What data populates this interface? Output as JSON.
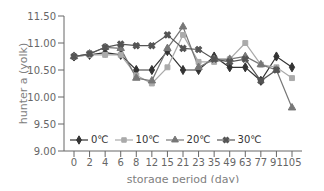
{
  "chart_data": {
    "type": "line",
    "xlabel": "storage period (day)",
    "ylabel": "hunter a (yolk)",
    "categories": [
      "0",
      "2",
      "4",
      "6",
      "8",
      "12",
      "15",
      "21",
      "23",
      "35",
      "49",
      "63",
      "77",
      "91",
      "105"
    ],
    "series": [
      {
        "name": "0℃",
        "color": "#333333",
        "marker": "diamond",
        "values": [
          10.75,
          10.78,
          10.82,
          10.78,
          10.5,
          10.5,
          10.85,
          10.5,
          10.5,
          10.75,
          10.55,
          10.55,
          10.3,
          10.75,
          10.55
        ]
      },
      {
        "name": "10℃",
        "color": "#aaaaaa",
        "marker": "square",
        "values": [
          10.75,
          10.78,
          10.78,
          10.78,
          10.4,
          10.25,
          10.55,
          11.15,
          10.65,
          10.65,
          10.7,
          11.0,
          10.6,
          10.55,
          10.35
        ]
      },
      {
        "name": "20℃",
        "color": "#777777",
        "marker": "triangle",
        "values": [
          10.75,
          10.8,
          10.92,
          10.9,
          10.35,
          10.3,
          10.9,
          11.3,
          10.55,
          10.7,
          10.7,
          10.75,
          10.6,
          10.5,
          9.8
        ]
      },
      {
        "name": "30℃",
        "color": "#555555",
        "marker": "x",
        "values": [
          10.75,
          10.8,
          10.92,
          10.98,
          10.95,
          10.95,
          11.15,
          10.9,
          10.88,
          10.7,
          10.65,
          10.7,
          10.3,
          10.5,
          null
        ]
      }
    ],
    "ylim": [
      9.0,
      11.5
    ],
    "yticks": [
      {
        "value": 9.0,
        "label": "9.00"
      },
      {
        "value": 9.5,
        "label": "9.50"
      },
      {
        "value": 10.0,
        "label": "10.00"
      },
      {
        "value": 10.5,
        "label": "10.50"
      },
      {
        "value": 11.0,
        "label": "11.00"
      },
      {
        "value": 11.5,
        "label": "11.50"
      }
    ],
    "grid": false,
    "legend": "lower left"
  }
}
